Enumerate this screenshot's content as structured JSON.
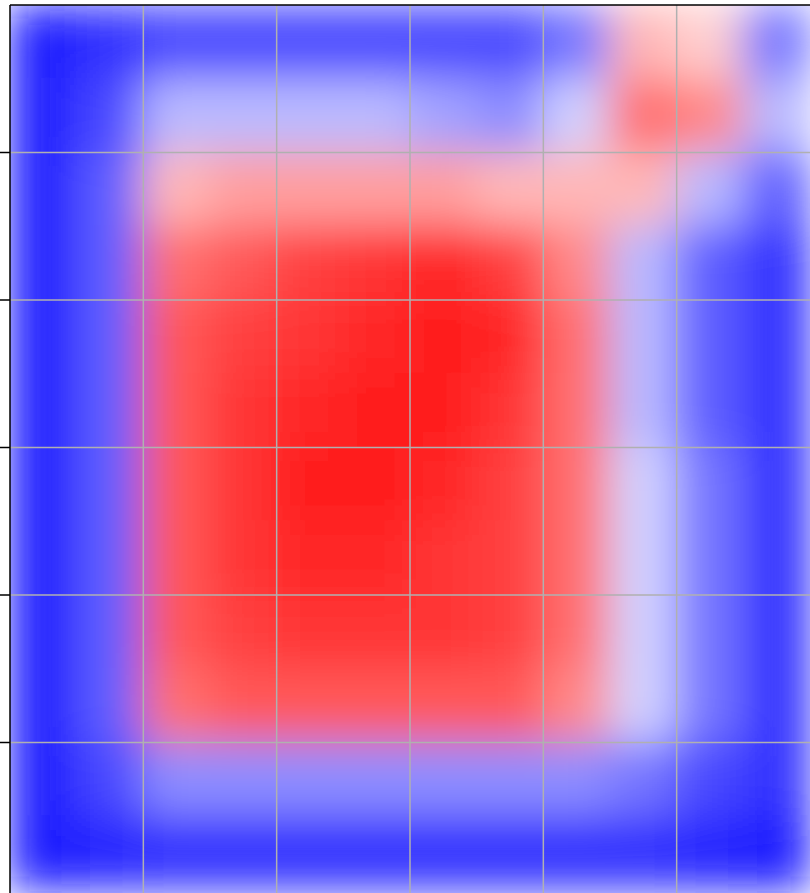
{
  "chart_data": {
    "type": "heatmap",
    "x": [
      0.25,
      0.75,
      1.25,
      1.75,
      2.25,
      2.75,
      3.25,
      3.75,
      4.25,
      4.75,
      5.25,
      5.75
    ],
    "y": [
      5.75,
      5.25,
      4.75,
      4.25,
      3.75,
      3.25,
      2.75,
      2.25,
      1.75,
      1.25,
      0.75,
      0.25
    ],
    "z": [
      [
        -1,
        -0.9,
        -0.8,
        -0.8,
        -0.8,
        -0.8,
        -0.8,
        -0.8,
        -0.6,
        0.3,
        0.2,
        -0.6
      ],
      [
        -1,
        -0.8,
        -0.3,
        -0.3,
        -0.3,
        -0.3,
        -0.4,
        -0.5,
        -0.2,
        0.6,
        0.5,
        -0.3
      ],
      [
        -1,
        -0.7,
        0.3,
        0.4,
        0.4,
        0.4,
        0.4,
        0.3,
        0.3,
        0.3,
        -0.3,
        -0.7
      ],
      [
        -1,
        -0.7,
        0.6,
        0.7,
        0.8,
        0.85,
        0.9,
        0.8,
        0.5,
        -0.3,
        -0.7,
        -0.9
      ],
      [
        -1,
        -0.7,
        0.7,
        0.8,
        0.85,
        0.9,
        0.95,
        0.9,
        0.6,
        -0.3,
        -0.7,
        -0.9
      ],
      [
        -1,
        -0.7,
        0.7,
        0.85,
        0.9,
        0.95,
        0.95,
        0.85,
        0.6,
        -0.3,
        -0.7,
        -0.9
      ],
      [
        -1,
        -0.7,
        0.7,
        0.85,
        0.95,
        0.95,
        0.9,
        0.8,
        0.6,
        -0.2,
        -0.6,
        -0.9
      ],
      [
        -1,
        -0.7,
        0.7,
        0.85,
        0.9,
        0.9,
        0.85,
        0.8,
        0.6,
        -0.2,
        -0.6,
        -0.9
      ],
      [
        -1,
        -0.7,
        0.7,
        0.8,
        0.85,
        0.85,
        0.85,
        0.8,
        0.6,
        -0.2,
        -0.6,
        -0.9
      ],
      [
        -1,
        -0.7,
        0.6,
        0.7,
        0.7,
        0.7,
        0.7,
        0.7,
        0.5,
        -0.2,
        -0.6,
        -0.9
      ],
      [
        -1,
        -0.8,
        -0.5,
        -0.5,
        -0.5,
        -0.5,
        -0.5,
        -0.5,
        -0.5,
        -0.6,
        -0.8,
        -0.9
      ],
      [
        -1,
        -0.95,
        -0.9,
        -0.9,
        -0.9,
        -0.9,
        -0.9,
        -0.9,
        -0.9,
        -0.9,
        -0.95,
        -1
      ]
    ],
    "zlim": [
      -1,
      1
    ],
    "colormap": [
      "#1a1aff",
      "#ffffff",
      "#ff1010"
    ],
    "xlim": [
      0,
      6
    ],
    "ylim": [
      0,
      6
    ],
    "xticks": [
      1,
      2,
      3,
      4,
      5
    ],
    "yticks": [
      1,
      2,
      3,
      4,
      5
    ],
    "grid": true
  }
}
